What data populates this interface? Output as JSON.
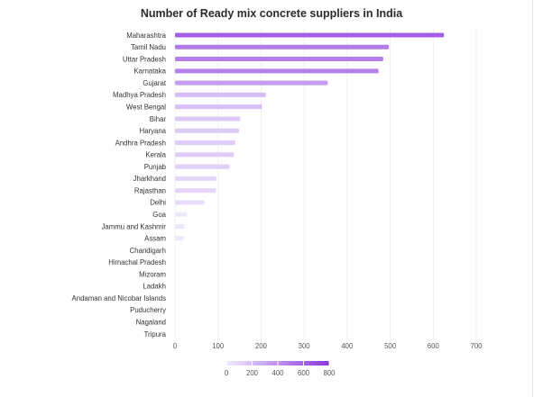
{
  "chart_data": {
    "type": "bar",
    "orientation": "horizontal",
    "title": "Number of Ready mix concrete suppliers in India",
    "xlabel": "",
    "ylabel": "",
    "xlim": [
      0,
      700
    ],
    "x_ticks": [
      "0",
      "100",
      "200",
      "300",
      "400",
      "500",
      "600",
      "700"
    ],
    "grid": true,
    "categories": [
      "Maharashtra",
      "Tamil Nadu",
      "Uttar Pradesh",
      "Karnataka",
      "Gujarat",
      "Madhya Pradesh",
      "West Bengal",
      "Bihar",
      "Haryana",
      "Andhra Pradesh",
      "Kerala",
      "Punjab",
      "Jharkhand",
      "Rajasthan",
      "Delhi",
      "Goa",
      "Jammu and Kashmir",
      "Assam",
      "Chandigarh",
      "Himachal Pradesh",
      "Mizoram",
      "Ladakh",
      "Andaman and Nicobar Islands",
      "Puducherry",
      "Nagaland",
      "Tripura"
    ],
    "values": [
      625,
      497,
      484,
      473,
      355,
      211,
      202,
      152,
      149,
      140,
      137,
      127,
      96,
      95,
      68,
      28,
      22,
      20,
      0,
      0,
      0,
      0,
      0,
      0,
      0,
      0
    ],
    "color_scale": {
      "min": 0,
      "max": 800,
      "ticks": [
        "0",
        "200",
        "400",
        "600",
        "800"
      ],
      "low_color": "#f1ecfd",
      "high_color": "#8a36df"
    }
  }
}
